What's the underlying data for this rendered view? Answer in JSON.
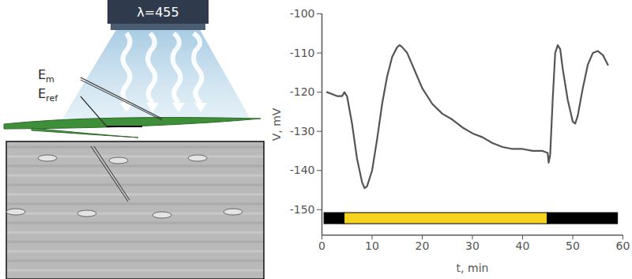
{
  "illustration": {
    "light_source_label": "λ=455",
    "electrode_labels": [
      {
        "main": "E",
        "sub": "m"
      },
      {
        "main": "E",
        "sub": "ref"
      }
    ]
  },
  "chart_data": {
    "type": "line",
    "x_label": "t, min",
    "y_label": "V, mV",
    "x": [
      1,
      2,
      3,
      4,
      4.5,
      4.7,
      5,
      6,
      7,
      8,
      8.5,
      9,
      10,
      11,
      12,
      13,
      14,
      15,
      15.5,
      16,
      17,
      18,
      19,
      20,
      22,
      24,
      26,
      28,
      30,
      32,
      34,
      36,
      38,
      40,
      42,
      44,
      45,
      45.2,
      45.5,
      46,
      46.5,
      47,
      47.5,
      48,
      49,
      50,
      50.5,
      51,
      52,
      53,
      54,
      55,
      56,
      57
    ],
    "values": [
      -120,
      -120.5,
      -121,
      -121,
      -120,
      -120.5,
      -121,
      -128,
      -137,
      -143,
      -144.5,
      -144,
      -140,
      -132,
      -123,
      -116,
      -111,
      -108.5,
      -108,
      -108.5,
      -110,
      -113,
      -116,
      -119,
      -123,
      -125.5,
      -127,
      -129,
      -130.5,
      -131.5,
      -133,
      -134,
      -134.5,
      -134.5,
      -135,
      -135,
      -135.5,
      -138,
      -136,
      -122,
      -110,
      -108,
      -109,
      -114,
      -122,
      -127.5,
      -128,
      -126,
      -119,
      -113,
      -110,
      -109.5,
      -110.5,
      -113
    ],
    "color": "#555555",
    "xlim": [
      0,
      60
    ],
    "xticks": [
      0,
      10,
      20,
      30,
      40,
      50,
      60
    ],
    "ylim": [
      -156.5,
      -100
    ],
    "yticks": [
      -150,
      -140,
      -130,
      -120,
      -110,
      -100
    ],
    "grid": false,
    "light_periods": [
      {
        "start": 0.5,
        "end": 4.5,
        "color": "#000000"
      },
      {
        "start": 4.5,
        "end": 45,
        "color": "#f5d31f"
      },
      {
        "start": 45,
        "end": 59,
        "color": "#000000"
      }
    ]
  }
}
